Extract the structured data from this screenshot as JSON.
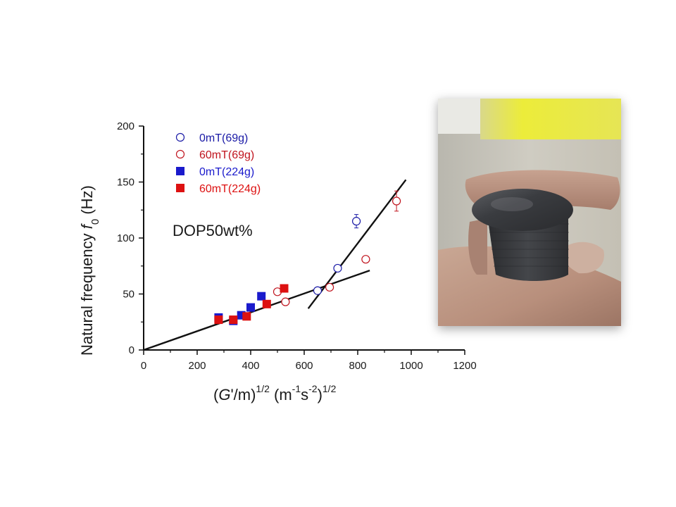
{
  "chart_data": {
    "type": "scatter",
    "xlim": [
      0,
      1200
    ],
    "ylim": [
      0,
      200
    ],
    "x_ticks": [
      "0",
      "200",
      "400",
      "600",
      "800",
      "1000",
      "1200"
    ],
    "y_ticks": [
      "0",
      "50",
      "100",
      "150",
      "200"
    ],
    "xlabel": {
      "pre": "(",
      "italic": "G",
      "mid": "'/m)",
      "sup1": "1/2",
      "unit": " (m",
      "sup2": "-1",
      "s": "s",
      "sup3": "-2",
      "close": ")",
      "sup4": "1/2"
    },
    "ylabel": {
      "text": "Natural frequency ",
      "italic": "f",
      "sub": "0",
      "unit": " (Hz)"
    },
    "annotation": "DOP50wt%",
    "grid": false,
    "legend_position": "top-left",
    "series": [
      {
        "name": "0mT(69g)",
        "marker": "open-circle",
        "color": "#1a1aa6",
        "x": [
          650,
          725,
          795
        ],
        "y": [
          53,
          73,
          115
        ],
        "yerr": [
          0,
          0,
          6
        ]
      },
      {
        "name": "60mT(69g)",
        "marker": "open-circle",
        "color": "#c0141e",
        "x": [
          500,
          530,
          695,
          830,
          945
        ],
        "y": [
          52,
          43,
          56,
          81,
          133
        ],
        "yerr": [
          0,
          0,
          0,
          0,
          9
        ]
      },
      {
        "name": "0mT(224g)",
        "marker": "filled-square",
        "color": "#1a1acc",
        "x": [
          280,
          335,
          365,
          400,
          440
        ],
        "y": [
          29,
          26,
          31,
          38,
          48
        ],
        "yerr": [
          0,
          0,
          0,
          0,
          0
        ]
      },
      {
        "name": "60mT(224g)",
        "marker": "filled-square",
        "color": "#dd1111",
        "x": [
          280,
          335,
          385,
          460,
          525
        ],
        "y": [
          27,
          27,
          30,
          41,
          55
        ],
        "yerr": [
          0,
          0,
          0,
          0,
          0
        ]
      }
    ],
    "fit_lines": [
      {
        "x": [
          0,
          845
        ],
        "y": [
          0,
          71
        ]
      },
      {
        "x": [
          615,
          980
        ],
        "y": [
          37,
          152
        ]
      }
    ]
  },
  "photo": {
    "description_icon": "magnetic-elastomer-disc-photo"
  }
}
